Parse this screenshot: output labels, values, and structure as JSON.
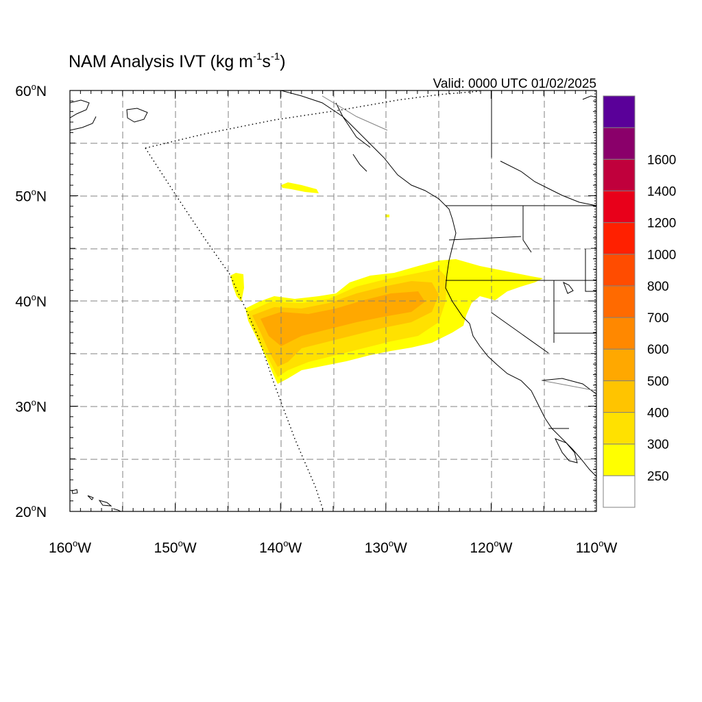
{
  "title": {
    "main": "NAM Analysis IVT (kg m",
    "sup1": "-1",
    "mid": "s",
    "sup2": "-1",
    "end": ")"
  },
  "valid_time": "Valid: 0000 UTC 01/02/2025",
  "axes": {
    "lon_ticks": [
      {
        "value": -160,
        "label": "160",
        "hemi": "W"
      },
      {
        "value": -150,
        "label": "150",
        "hemi": "W"
      },
      {
        "value": -140,
        "label": "140",
        "hemi": "W"
      },
      {
        "value": -130,
        "label": "130",
        "hemi": "W"
      },
      {
        "value": -120,
        "label": "120",
        "hemi": "W"
      },
      {
        "value": -110,
        "label": "110",
        "hemi": "W"
      }
    ],
    "lat_ticks": [
      {
        "value": 60,
        "label": "60",
        "hemi": "N"
      },
      {
        "value": 50,
        "label": "50",
        "hemi": "N"
      },
      {
        "value": 40,
        "label": "40",
        "hemi": "N"
      },
      {
        "value": 30,
        "label": "30",
        "hemi": "N"
      },
      {
        "value": 20,
        "label": "20",
        "hemi": "N"
      }
    ],
    "degree_symbol": "o",
    "lon_range": [
      -160,
      -110
    ],
    "lat_range": [
      20,
      60
    ],
    "grid_interval_deg": 5,
    "grid": true
  },
  "colorbar": {
    "levels": [
      {
        "label": "",
        "color": "#ffffff"
      },
      {
        "label": "250",
        "color": "#ffff00"
      },
      {
        "label": "300",
        "color": "#ffe100"
      },
      {
        "label": "400",
        "color": "#ffc400"
      },
      {
        "label": "500",
        "color": "#ffa800"
      },
      {
        "label": "600",
        "color": "#ff8800"
      },
      {
        "label": "700",
        "color": "#ff6a00"
      },
      {
        "label": "800",
        "color": "#ff4c00"
      },
      {
        "label": "1000",
        "color": "#ff2000"
      },
      {
        "label": "1200",
        "color": "#e8001a"
      },
      {
        "label": "1400",
        "color": "#c0003c"
      },
      {
        "label": "1600",
        "color": "#8a006a"
      },
      {
        "label": "",
        "color": "#5a0099"
      }
    ]
  }
}
